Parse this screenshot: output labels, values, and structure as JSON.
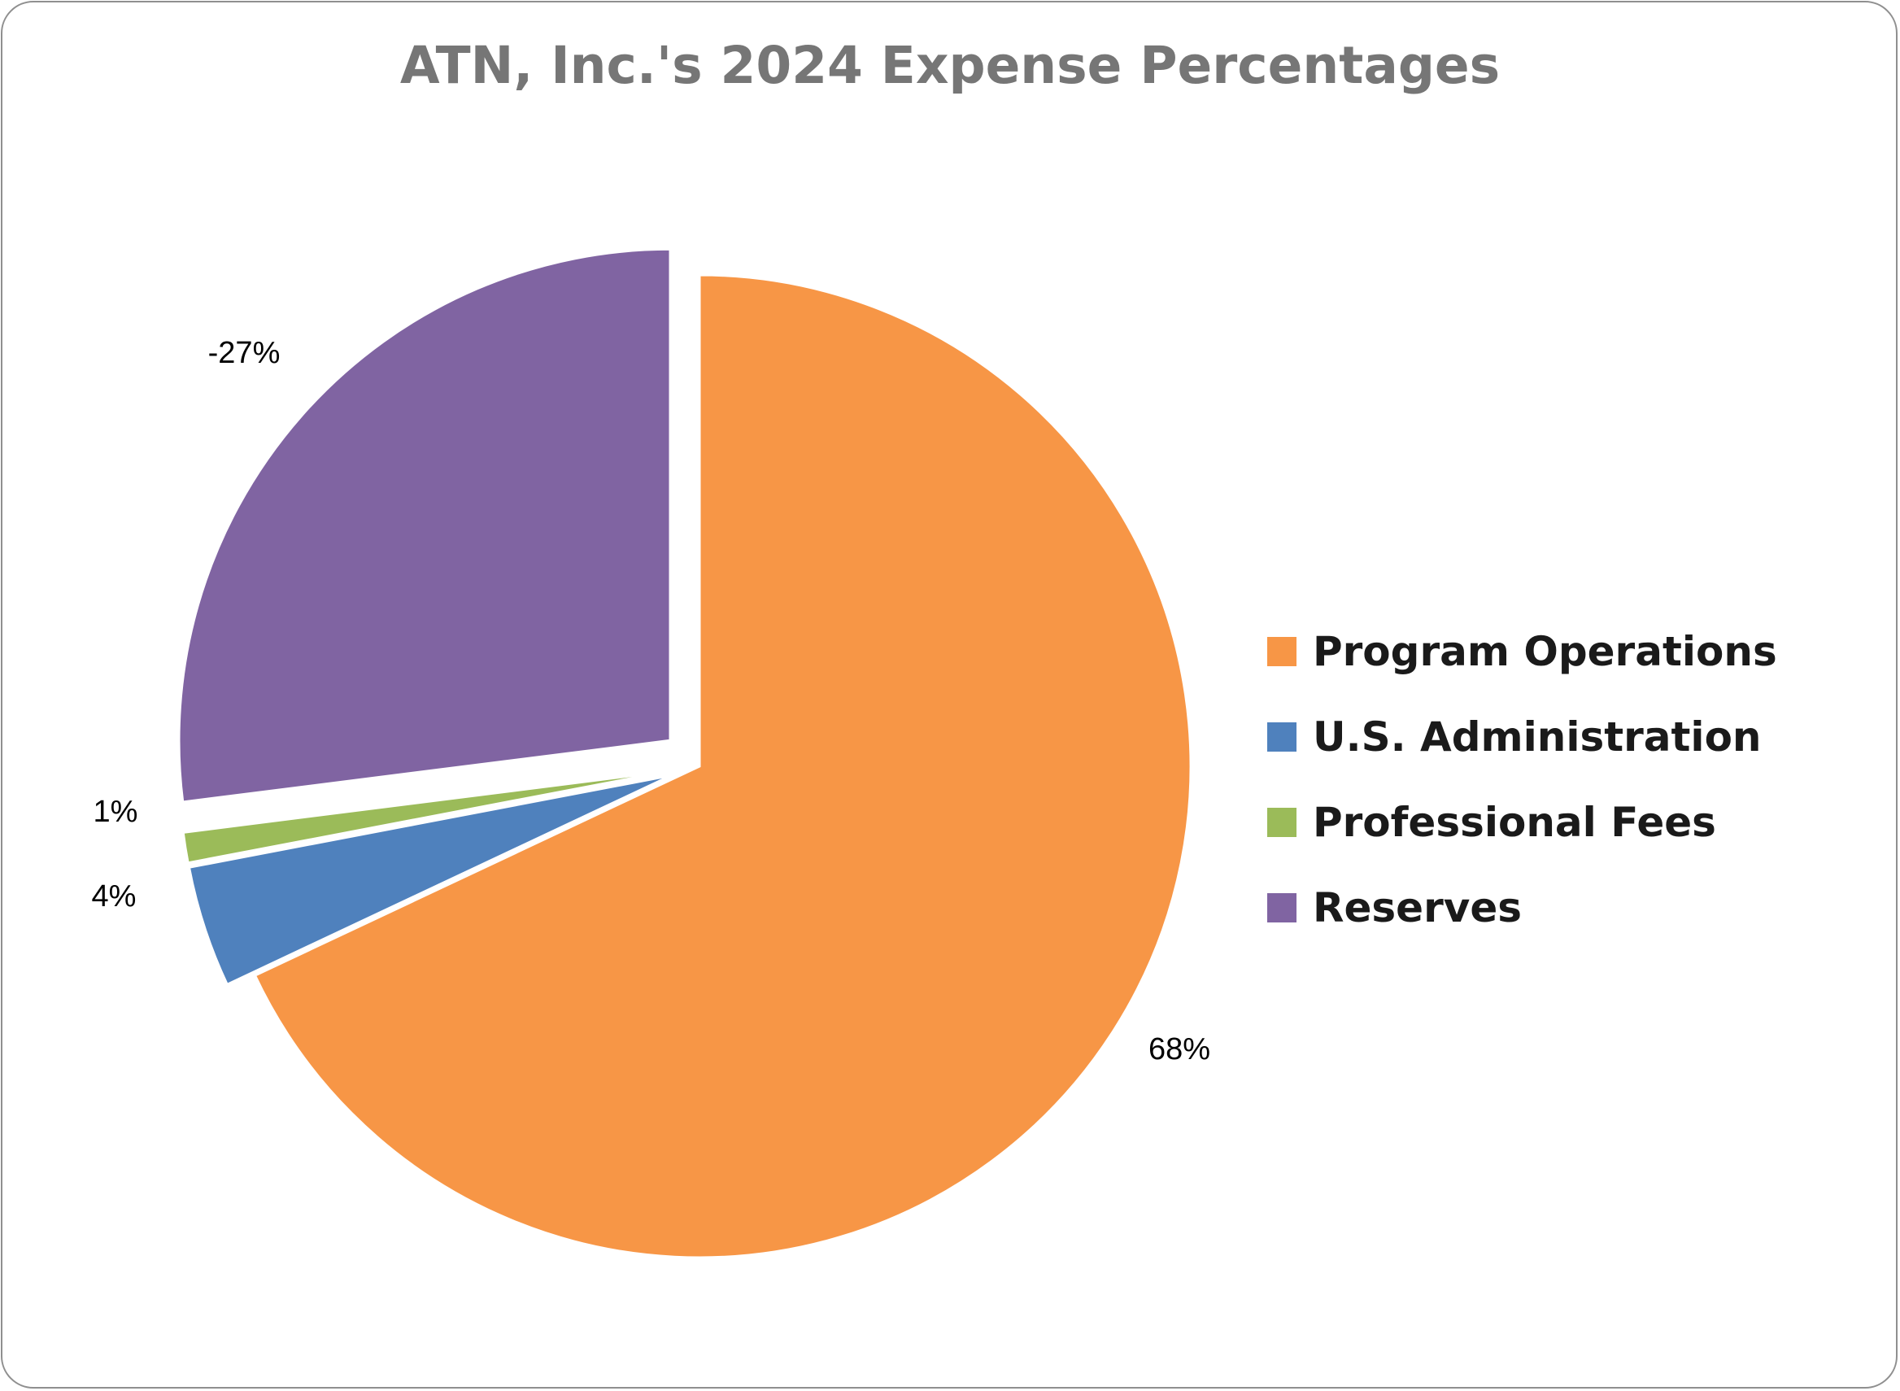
{
  "chart_data": {
    "type": "pie",
    "title": "ATN, Inc.'s 2024 Expense Percentages",
    "categories": [
      "Program Operations",
      "U.S. Administration",
      "Professional Fees",
      "Reserves"
    ],
    "values": [
      68,
      4,
      1,
      -27
    ],
    "data_labels": [
      "68%",
      "4%",
      "1%",
      "-27%"
    ],
    "colors": [
      "#f79646",
      "#4f81bd",
      "#9bbb59",
      "#8064a2"
    ],
    "legend_position": "right",
    "exploded": true
  }
}
